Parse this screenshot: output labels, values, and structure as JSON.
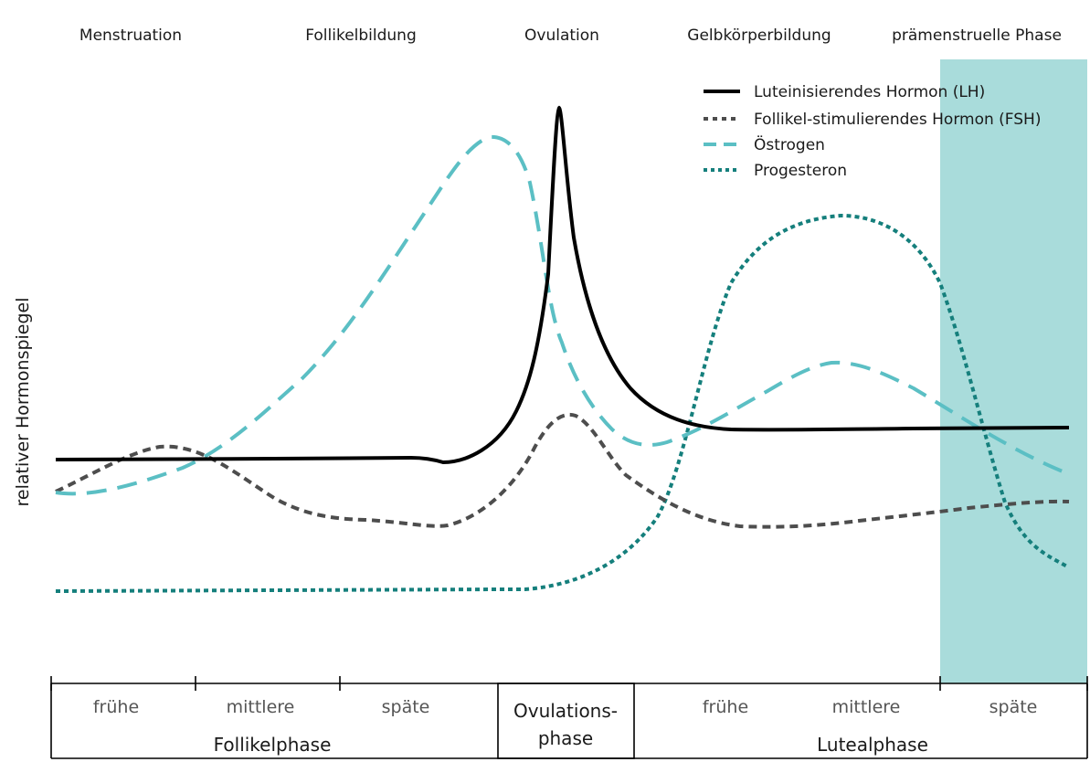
{
  "top_labels": [
    "Menstruation",
    "Follikelbildung",
    "Ovulation",
    "Gelbkörperbildung",
    "prämenstruelle Phase"
  ],
  "y_axis_label": "relativer Hormonspiegel",
  "legend": {
    "lh": "Luteinisierendes Hormon (LH)",
    "fsh": "Follikel-stimulierendes Hormon (FSH)",
    "estrogen": "Östrogen",
    "progesterone": "Progesteron"
  },
  "colors": {
    "lh": "#000000",
    "fsh": "#4d4d4d",
    "estrogen": "#5bbfc4",
    "progesterone": "#157f7c",
    "premenstrual_band": "#a9dcdb"
  },
  "timeline": {
    "follicular": {
      "sub": [
        "frühe",
        "mittlere",
        "späte"
      ],
      "name": "Follikelphase"
    },
    "ovulation": {
      "line1": "Ovulations-",
      "line2": "phase"
    },
    "luteal": {
      "sub": [
        "frühe",
        "mittlere",
        "späte"
      ],
      "name": "Lutealphase"
    }
  }
}
